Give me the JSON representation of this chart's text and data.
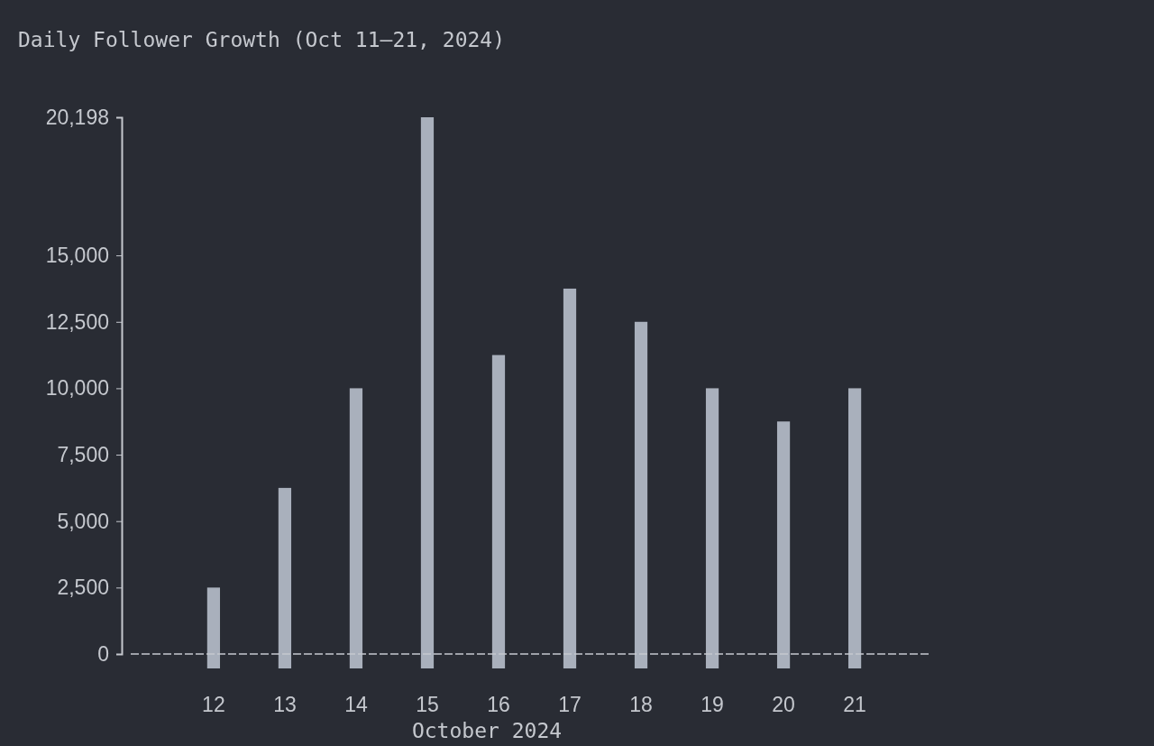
{
  "chart_data": {
    "type": "bar",
    "title": "Daily Follower Growth (Oct 11–21, 2024)",
    "xlabel": "October 2024",
    "categories": [
      "12",
      "13",
      "14",
      "15",
      "16",
      "17",
      "18",
      "19",
      "20",
      "21"
    ],
    "values": [
      2500,
      6250,
      10000,
      20198,
      11250,
      13750,
      12500,
      10000,
      8750,
      10000
    ],
    "color": "#a9b0bc",
    "ylim": [
      0,
      20198
    ],
    "yticks": [
      0,
      {
        "value": 2500,
        "label": "2,500"
      },
      {
        "value": 5000,
        "label": "5,000"
      },
      {
        "value": 7500,
        "label": "7,500"
      },
      {
        "value": 10000,
        "label": "10,000"
      },
      {
        "value": 12500,
        "label": "12,500"
      },
      {
        "value": 15000,
        "label": "15,000"
      },
      {
        "value": 20198,
        "label": "20,198"
      }
    ],
    "grid": false
  }
}
